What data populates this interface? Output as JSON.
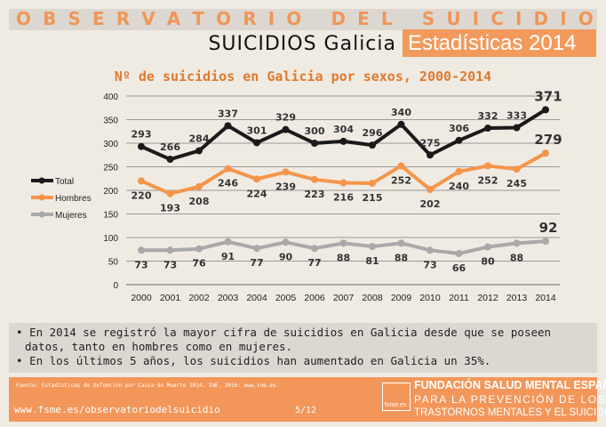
{
  "header": {
    "letters": [
      "O",
      "B",
      "S",
      "E",
      "R",
      "V",
      "A",
      "T",
      "O",
      "R",
      "I",
      "O",
      "",
      "D",
      "E",
      "L",
      "",
      "S",
      "U",
      "I",
      "C",
      "I",
      "D",
      "I",
      "O"
    ],
    "title": "OBSERVATORIO DEL SUICIDIO",
    "subtitle": "SUICIDIOS Galicia",
    "badge": "Estadísticas 2014"
  },
  "colors": {
    "accent": "#f29a5c",
    "total": "#1a1a1a",
    "hombres": "#f4954a",
    "mujeres": "#a9a9a9"
  },
  "chart_data": {
    "type": "line",
    "title": "Nº de suicidios en Galicia por sexos, 2000-2014",
    "xlabel": "",
    "ylabel": "",
    "ylim": [
      0,
      400
    ],
    "yticks": [
      0,
      50,
      100,
      150,
      200,
      250,
      300,
      350,
      400
    ],
    "grid": true,
    "legend": "left",
    "categories": [
      "2000",
      "2001",
      "2002",
      "2003",
      "2004",
      "2005",
      "2006",
      "2007",
      "2008",
      "2009",
      "2010",
      "2011",
      "2012",
      "2013",
      "2014"
    ],
    "series": [
      {
        "name": "Total",
        "values": [
          293,
          266,
          284,
          337,
          301,
          329,
          300,
          304,
          296,
          340,
          275,
          306,
          332,
          333,
          371
        ]
      },
      {
        "name": "Hombres",
        "values": [
          220,
          193,
          208,
          246,
          224,
          239,
          223,
          216,
          215,
          252,
          202,
          240,
          252,
          245,
          279
        ]
      },
      {
        "name": "Mujeres",
        "values": [
          73,
          73,
          76,
          91,
          77,
          90,
          77,
          88,
          81,
          88,
          73,
          66,
          80,
          88,
          92
        ]
      }
    ]
  },
  "notes": [
    "En 2014 se registró la mayor cifra de suicidios en Galicia desde que se poseen datos, tanto en hombres como en mujeres.",
    "En los últimos 5 años, los suicidios han aumentado en Galicia un 35%."
  ],
  "footer": {
    "source": "Fuente: Estadísticas de Defunción por Causa de Muerte 2014. INE, 2016: www.ine.es.",
    "url": "www.fsme.es/observatoriodelsuicidio",
    "page": "5/12",
    "logo": "fsme.es",
    "org": "FUNDACIÓN SALUD MENTAL ESPAÑA",
    "line2": "PARA LA PREVENCIÓN DE LOS",
    "line3": "TRASTORNOS MENTALES Y EL SUICIDIO"
  }
}
